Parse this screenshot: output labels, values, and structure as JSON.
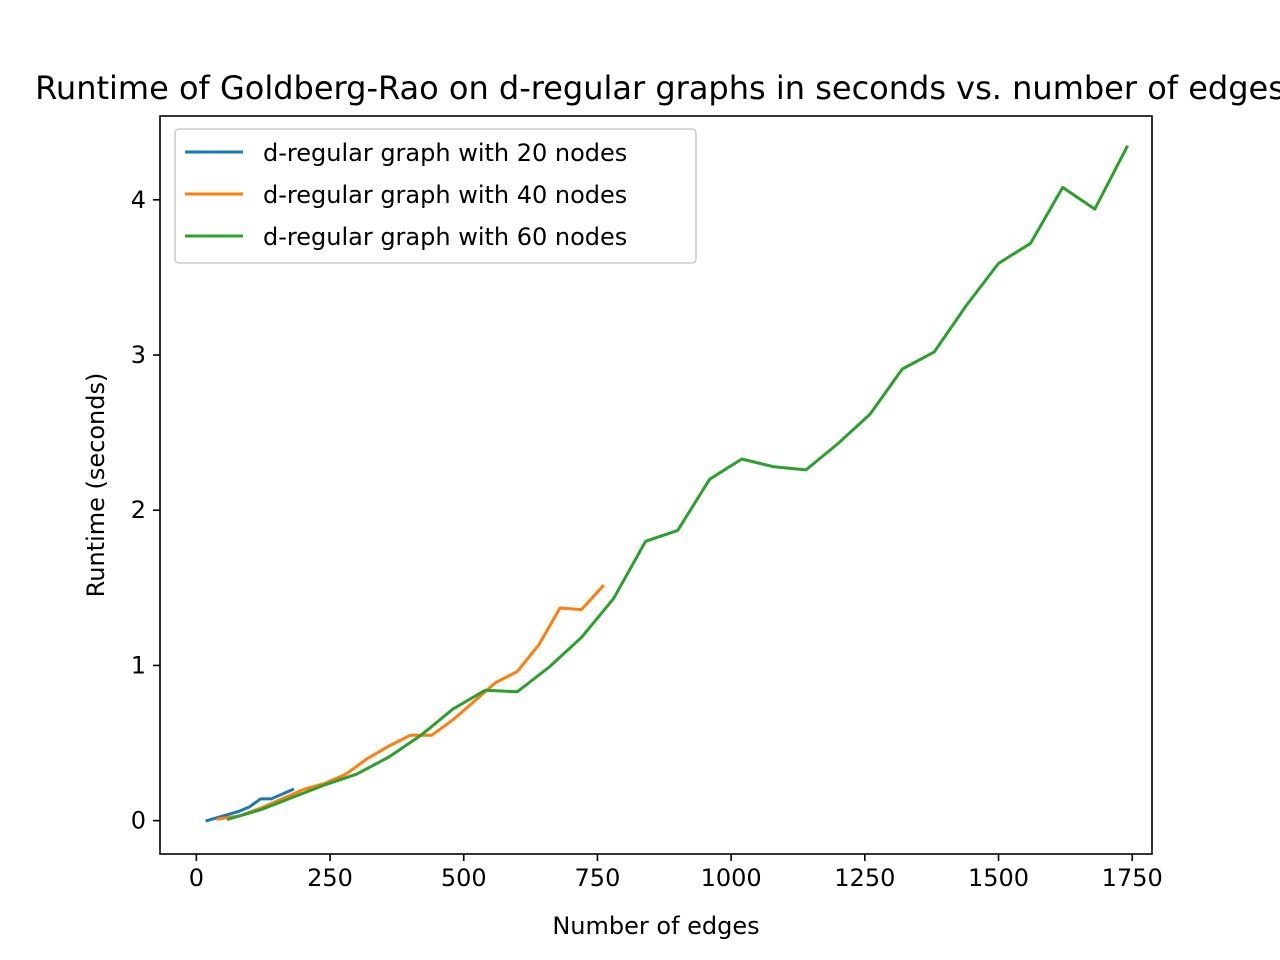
{
  "chart_data": {
    "type": "line",
    "title": "Runtime of Goldberg-Rao on d-regular graphs in seconds vs. number of edges",
    "xlabel": "Number of edges",
    "ylabel": "Runtime (seconds)",
    "xlim": [
      -68,
      1787
    ],
    "ylim": [
      -0.215,
      4.54
    ],
    "xticks": [
      0,
      250,
      500,
      750,
      1000,
      1250,
      1500,
      1750
    ],
    "yticks": [
      0,
      1,
      2,
      3,
      4
    ],
    "grid": false,
    "legend_position": "top-left",
    "series": [
      {
        "name": "d-regular graph with 20 nodes",
        "color": "#1f77b4",
        "x": [
          20,
          40,
          60,
          80,
          100,
          120,
          140,
          160,
          180
        ],
        "y": [
          0.0,
          0.02,
          0.04,
          0.06,
          0.09,
          0.14,
          0.14,
          0.17,
          0.2
        ]
      },
      {
        "name": "d-regular graph with 40 nodes",
        "color": "#ff7f0e",
        "x": [
          40,
          80,
          120,
          160,
          200,
          240,
          280,
          320,
          360,
          400,
          440,
          480,
          520,
          560,
          600,
          640,
          680,
          720,
          760
        ],
        "y": [
          0.01,
          0.03,
          0.08,
          0.14,
          0.2,
          0.24,
          0.3,
          0.4,
          0.48,
          0.55,
          0.55,
          0.65,
          0.77,
          0.89,
          0.96,
          1.13,
          1.37,
          1.36,
          1.51
        ]
      },
      {
        "name": "d-regular graph with 60 nodes",
        "color": "#2ca02c",
        "x": [
          60,
          120,
          180,
          240,
          300,
          360,
          420,
          480,
          540,
          600,
          660,
          720,
          780,
          840,
          900,
          960,
          1020,
          1080,
          1140,
          1200,
          1260,
          1320,
          1380,
          1440,
          1500,
          1560,
          1620,
          1680,
          1740
        ],
        "y": [
          0.01,
          0.07,
          0.15,
          0.23,
          0.3,
          0.41,
          0.55,
          0.72,
          0.84,
          0.83,
          0.99,
          1.18,
          1.43,
          1.8,
          1.87,
          2.2,
          2.33,
          2.28,
          2.26,
          2.43,
          2.62,
          2.91,
          3.02,
          3.32,
          3.59,
          3.72,
          4.08,
          3.94,
          4.34
        ]
      }
    ]
  }
}
